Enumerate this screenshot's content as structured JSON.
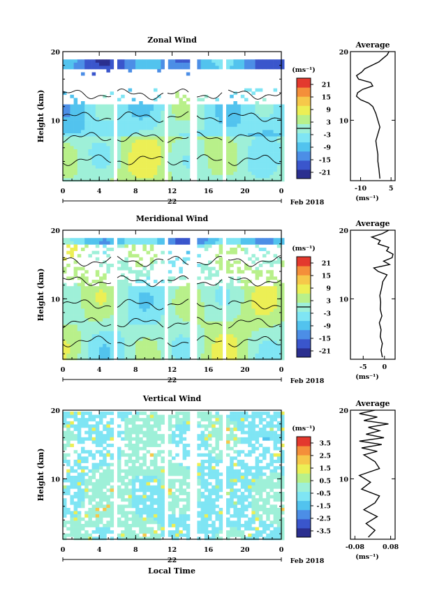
{
  "figure": {
    "xlabel": "Local Time",
    "date_label": "Feb 2018"
  },
  "colors": {
    "scale": [
      "#2b2f8f",
      "#3a56cc",
      "#4c8ee6",
      "#52c3ee",
      "#7fe5f4",
      "#9ef0d8",
      "#b8f08a",
      "#ecef55",
      "#f6c84a",
      "#f48f3a",
      "#e3392e"
    ]
  },
  "chart_data": [
    {
      "type": "heatmap",
      "title": "Zonal Wind",
      "ylabel": "Height (km)",
      "xlim": [
        0,
        24
      ],
      "ylim": [
        1.2,
        20
      ],
      "x_ticks": [
        "0",
        "4",
        "8",
        "12",
        "16",
        "20",
        "0"
      ],
      "y_ticks": [
        "10",
        "20"
      ],
      "day_labels": [
        "22"
      ],
      "colorbar": {
        "unit": "(ms⁻¹)",
        "range": [
          -24,
          24
        ],
        "ticks": [
          "21",
          "15",
          "9",
          "3",
          "-3",
          "-9",
          "-15",
          "-21"
        ],
        "contour_level": 0
      },
      "data_gaps_hours": [
        [
          5.4,
          5.9
        ],
        [
          11.2,
          11.5
        ],
        [
          13.9,
          14.6
        ],
        [
          17.6,
          18.1
        ]
      ],
      "profile": {
        "title": "Average",
        "x_ticks": [
          "-10",
          "5"
        ],
        "xlim": [
          -15,
          7
        ],
        "xlabel": "(ms⁻¹)",
        "heights": [
          1.5,
          3,
          4,
          5,
          6,
          7,
          8,
          9,
          10,
          11,
          12,
          12.5,
          13,
          13.5,
          14,
          14.5,
          15,
          15.5,
          16,
          16.5,
          17,
          17.5,
          18,
          18.5,
          19,
          19.5,
          20
        ],
        "values": [
          -0.5,
          -1,
          -1.5,
          -1.5,
          -2,
          -2.5,
          -1.5,
          -0.5,
          -1.5,
          -2.5,
          -4,
          -6,
          -10,
          -12,
          -11.5,
          -9,
          -4,
          -5,
          -11,
          -12,
          -9.5,
          -8,
          -4.5,
          -1,
          1,
          3,
          4
        ]
      }
    },
    {
      "type": "heatmap",
      "title": "Meridional Wind",
      "ylabel": "Height (km)",
      "xlim": [
        0,
        24
      ],
      "ylim": [
        1.2,
        20
      ],
      "x_ticks": [
        "0",
        "4",
        "8",
        "12",
        "16",
        "20",
        "0"
      ],
      "y_ticks": [
        "10",
        "20"
      ],
      "day_labels": [
        "22"
      ],
      "colorbar": {
        "unit": "(ms⁻¹)",
        "range": [
          -24,
          24
        ],
        "ticks": [
          "21",
          "15",
          "9",
          "3",
          "-3",
          "-9",
          "-15",
          "-21"
        ],
        "contour_level": 0
      },
      "data_gaps_hours": [
        [
          5.4,
          5.9
        ],
        [
          11.2,
          11.5
        ],
        [
          13.9,
          14.6
        ],
        [
          17.6,
          18.1
        ]
      ],
      "profile": {
        "title": "Average",
        "x_ticks": [
          "-5",
          "0"
        ],
        "xlim": [
          -8,
          2.5
        ],
        "xlabel": "(ms⁻¹)",
        "heights": [
          1.5,
          2.5,
          3.5,
          4.5,
          5.5,
          6.5,
          7.5,
          8.5,
          9.5,
          10.5,
          11.5,
          12.5,
          13.5,
          14,
          14.5,
          15,
          15.5,
          16,
          16.5,
          17,
          17.5,
          18,
          18.5,
          19,
          19.5,
          20
        ],
        "values": [
          -0.5,
          -0.8,
          -0.5,
          -1,
          -0.8,
          -1.2,
          -0.6,
          -1,
          -0.9,
          -1.1,
          -0.7,
          -0.4,
          0.6,
          -1.5,
          -2.5,
          1.2,
          -0.2,
          1.8,
          2,
          0.5,
          1,
          -1.5,
          -1,
          -3,
          -0.5,
          1
        ]
      }
    },
    {
      "type": "heatmap",
      "title": "Vertical Wind",
      "ylabel": "Height (km)",
      "xlim": [
        0,
        24
      ],
      "ylim": [
        1.2,
        20
      ],
      "x_ticks": [
        "0",
        "4",
        "8",
        "12",
        "16",
        "20",
        "0"
      ],
      "y_ticks": [
        "10",
        "20"
      ],
      "day_labels": [
        "22"
      ],
      "colorbar": {
        "unit": "(ms⁻¹)",
        "range": [
          -4,
          4
        ],
        "ticks": [
          "3.5",
          "2.5",
          "1.5",
          "0.5",
          "-0.5",
          "-1.5",
          "-2.5",
          "-3.5"
        ]
      },
      "data_gaps_hours": [
        [
          5.4,
          5.9
        ],
        [
          11.2,
          11.5
        ],
        [
          13.9,
          14.6
        ],
        [
          17.6,
          18.1
        ]
      ],
      "profile": {
        "title": "Average",
        "x_ticks": [
          "-0.08",
          "0.08"
        ],
        "xlim": [
          -0.1,
          0.1
        ],
        "xlabel": "(ms⁻¹)",
        "heights": [
          1.5,
          2.5,
          3.5,
          4.5,
          5.5,
          6.5,
          7.5,
          8.5,
          9.5,
          10.5,
          11.5,
          12.5,
          13.5,
          14,
          14.5,
          15,
          15.5,
          16,
          16.5,
          17,
          17.5,
          18,
          18.5,
          19,
          19.5,
          20
        ],
        "values": [
          -0.02,
          0.01,
          -0.03,
          0.02,
          -0.04,
          0.01,
          0.03,
          -0.05,
          -0.01,
          -0.06,
          0.03,
          0.01,
          -0.04,
          0.02,
          -0.05,
          0.04,
          -0.06,
          0.05,
          -0.03,
          0.03,
          -0.02,
          0.07,
          -0.04,
          0.02,
          -0.06,
          0.01
        ]
      }
    }
  ]
}
